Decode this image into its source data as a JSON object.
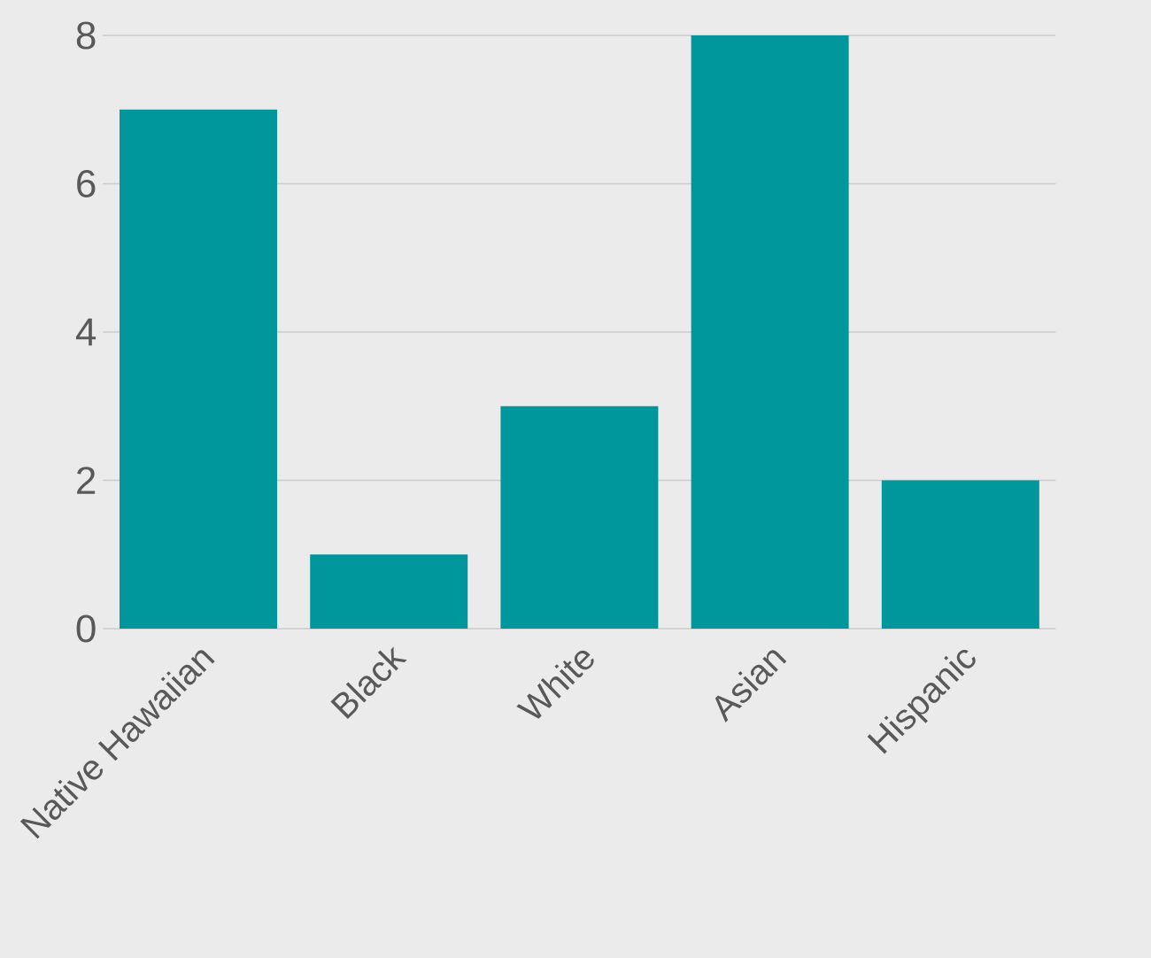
{
  "chart_data": {
    "type": "bar",
    "categories": [
      "Native Hawaiian",
      "Black",
      "White",
      "Asian",
      "Hispanic"
    ],
    "values": [
      7,
      1,
      3,
      8,
      2
    ],
    "color": "#00979c",
    "ylim": [
      0,
      8
    ],
    "yticks": [
      0,
      2,
      4,
      6,
      8
    ],
    "grid": "y"
  }
}
